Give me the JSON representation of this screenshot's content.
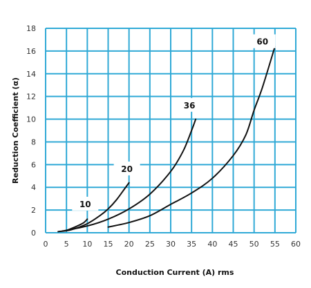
{
  "chart_data": {
    "type": "line",
    "title": "",
    "xlabel": "Conduction Current (A) rms",
    "ylabel": "Reduction Coefficient (α)",
    "xlim": [
      0,
      60
    ],
    "ylim": [
      0,
      18
    ],
    "x_ticks": [
      "0",
      "5",
      "10",
      "15",
      "20",
      "25",
      "30",
      "35",
      "40",
      "45",
      "50",
      "55",
      "60"
    ],
    "y_ticks": [
      "0",
      "2",
      "4",
      "6",
      "8",
      "10",
      "12",
      "14",
      "16",
      "18"
    ],
    "grid": true,
    "series": [
      {
        "name": "10",
        "x": [
          5,
          7,
          9,
          10
        ],
        "y": [
          0.2,
          0.5,
          0.85,
          1.2
        ]
      },
      {
        "name": "20",
        "x": [
          3,
          6,
          10,
          13,
          15,
          17,
          19,
          20
        ],
        "y": [
          0.1,
          0.25,
          0.8,
          1.5,
          2.1,
          2.9,
          3.9,
          4.4
        ]
      },
      {
        "name": "36",
        "x": [
          4,
          10,
          15,
          20,
          25,
          30,
          33,
          35,
          36
        ],
        "y": [
          0.15,
          0.6,
          1.2,
          2.1,
          3.4,
          5.4,
          7.2,
          9.0,
          10.0
        ]
      },
      {
        "name": "60",
        "x": [
          15,
          20,
          25,
          30,
          35,
          40,
          45,
          48,
          50,
          52,
          55
        ],
        "y": [
          0.5,
          0.9,
          1.5,
          2.5,
          3.5,
          4.8,
          6.8,
          8.6,
          10.8,
          12.8,
          16.4
        ]
      }
    ],
    "curve_labels": [
      {
        "text": "10",
        "x": 9.5,
        "y": 2.5
      },
      {
        "text": "20",
        "x": 19.5,
        "y": 5.6
      },
      {
        "text": "36",
        "x": 34.5,
        "y": 11.2
      },
      {
        "text": "60",
        "x": 52,
        "y": 16.8
      }
    ],
    "colors": {
      "grid": "#2fa9d6",
      "curve": "#111111",
      "axis_text": "#333333"
    }
  }
}
